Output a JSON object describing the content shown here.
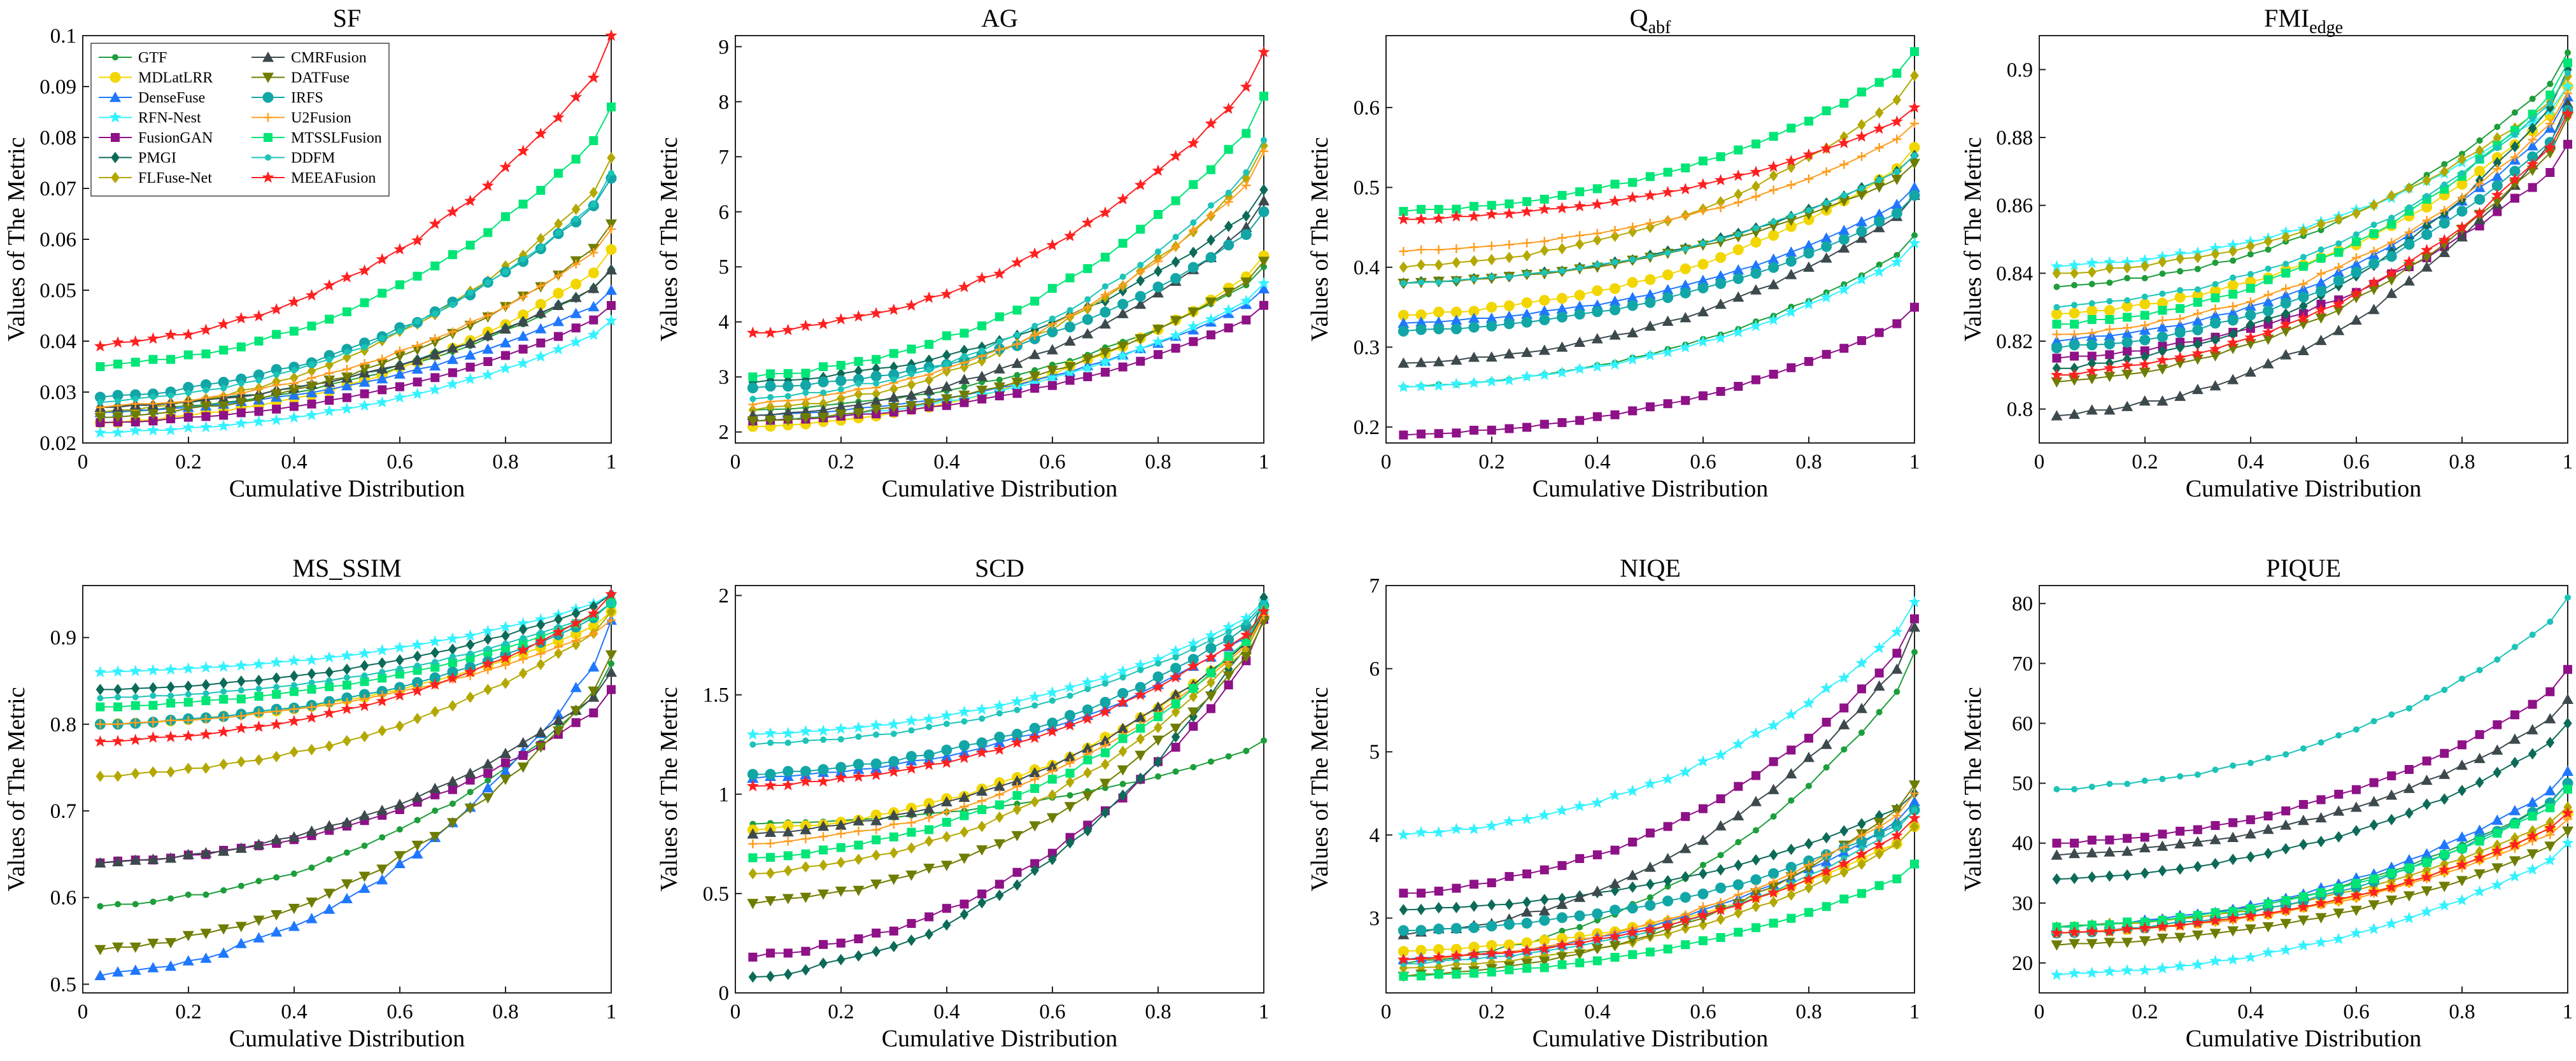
{
  "figure": {
    "x_tick_labels": [
      "0",
      "0.2",
      "0.4",
      "0.6",
      "0.8",
      "1"
    ]
  },
  "methods": [
    {
      "name": "GTF",
      "color": "#1d9e3b",
      "marker": "dot"
    },
    {
      "name": "MDLatLRR",
      "color": "#f2d600",
      "marker": "circle"
    },
    {
      "name": "DenseFuse",
      "color": "#1f77ff",
      "marker": "triangle"
    },
    {
      "name": "RFN-Nest",
      "color": "#33f2ff",
      "marker": "star"
    },
    {
      "name": "FusionGAN",
      "color": "#8e1187",
      "marker": "square"
    },
    {
      "name": "PMGI",
      "color": "#0c6b58",
      "marker": "diamond"
    },
    {
      "name": "FLFuse-Net",
      "color": "#b3a800",
      "marker": "diamond"
    },
    {
      "name": "CMRFusion",
      "color": "#3d4a4d",
      "marker": "triangle"
    },
    {
      "name": "DATFuse",
      "color": "#6e7d00",
      "marker": "triangle-down"
    },
    {
      "name": "IRFS",
      "color": "#12a6a6",
      "marker": "circle"
    },
    {
      "name": "U2Fusion",
      "color": "#ff9d1e",
      "marker": "plus"
    },
    {
      "name": "MTSSLFusion",
      "color": "#00e676",
      "marker": "square"
    },
    {
      "name": "DDFM",
      "color": "#1cc4b8",
      "marker": "dot"
    },
    {
      "name": "MEEAFusion",
      "color": "#ff2020",
      "marker": "star"
    }
  ],
  "chart_data": [
    {
      "type": "line",
      "title": "SF",
      "title_sub": "",
      "xlabel": "Cumulative Distribution",
      "ylabel": "Values of The Metric",
      "xlim": [
        0,
        1
      ],
      "ylim": [
        0.02,
        0.1
      ],
      "yticks": [
        "0.02",
        "0.03",
        "0.04",
        "0.05",
        "0.06",
        "0.07",
        "0.08",
        "0.09",
        "0.1"
      ],
      "series": [
        {
          "name": "GTF",
          "start": 0.026,
          "end": 0.054
        },
        {
          "name": "MDLatLRR",
          "start": 0.024,
          "end": 0.058
        },
        {
          "name": "DenseFuse",
          "start": 0.026,
          "end": 0.05
        },
        {
          "name": "RFN-Nest",
          "start": 0.022,
          "end": 0.044
        },
        {
          "name": "FusionGAN",
          "start": 0.024,
          "end": 0.047
        },
        {
          "name": "PMGI",
          "start": 0.027,
          "end": 0.054
        },
        {
          "name": "FLFuse-Net",
          "start": 0.026,
          "end": 0.076
        },
        {
          "name": "CMRFusion",
          "start": 0.027,
          "end": 0.054
        },
        {
          "name": "DATFuse",
          "start": 0.025,
          "end": 0.063
        },
        {
          "name": "IRFS",
          "start": 0.029,
          "end": 0.072
        },
        {
          "name": "U2Fusion",
          "start": 0.027,
          "end": 0.062
        },
        {
          "name": "MTSSLFusion",
          "start": 0.035,
          "end": 0.086
        },
        {
          "name": "DDFM",
          "start": 0.028,
          "end": 0.073
        },
        {
          "name": "MEEAFusion",
          "start": 0.039,
          "end": 0.1
        }
      ]
    },
    {
      "type": "line",
      "title": "AG",
      "title_sub": "",
      "xlabel": "Cumulative Distribution",
      "ylabel": "Values of The Metric",
      "xlim": [
        0,
        1
      ],
      "ylim": [
        1.8,
        9.2
      ],
      "yticks": [
        "2",
        "3",
        "4",
        "5",
        "6",
        "7",
        "8",
        "9"
      ],
      "series": [
        {
          "name": "GTF",
          "start": 2.4,
          "end": 5.0
        },
        {
          "name": "MDLatLRR",
          "start": 2.1,
          "end": 5.2
        },
        {
          "name": "DenseFuse",
          "start": 2.3,
          "end": 4.6
        },
        {
          "name": "RFN-Nest",
          "start": 2.2,
          "end": 4.7
        },
        {
          "name": "FusionGAN",
          "start": 2.2,
          "end": 4.3
        },
        {
          "name": "PMGI",
          "start": 2.9,
          "end": 6.4
        },
        {
          "name": "FLFuse-Net",
          "start": 2.4,
          "end": 7.2
        },
        {
          "name": "CMRFusion",
          "start": 2.3,
          "end": 6.2
        },
        {
          "name": "DATFuse",
          "start": 2.2,
          "end": 5.1
        },
        {
          "name": "IRFS",
          "start": 2.8,
          "end": 6.0
        },
        {
          "name": "U2Fusion",
          "start": 2.5,
          "end": 7.1
        },
        {
          "name": "MTSSLFusion",
          "start": 3.0,
          "end": 8.1
        },
        {
          "name": "DDFM",
          "start": 2.6,
          "end": 7.3
        },
        {
          "name": "MEEAFusion",
          "start": 3.8,
          "end": 8.9
        }
      ]
    },
    {
      "type": "line",
      "title": "Q",
      "title_sub": "abf",
      "xlabel": "Cumulative Distribution",
      "ylabel": "Values of The Metric",
      "xlim": [
        0,
        1
      ],
      "ylim": [
        0.18,
        0.69
      ],
      "yticks": [
        "0.2",
        "0.3",
        "0.4",
        "0.5",
        "0.6"
      ],
      "series": [
        {
          "name": "GTF",
          "start": 0.25,
          "end": 0.44
        },
        {
          "name": "MDLatLRR",
          "start": 0.34,
          "end": 0.55
        },
        {
          "name": "DenseFuse",
          "start": 0.33,
          "end": 0.5
        },
        {
          "name": "RFN-Nest",
          "start": 0.25,
          "end": 0.43
        },
        {
          "name": "FusionGAN",
          "start": 0.19,
          "end": 0.35
        },
        {
          "name": "PMGI",
          "start": 0.38,
          "end": 0.54
        },
        {
          "name": "FLFuse-Net",
          "start": 0.4,
          "end": 0.64
        },
        {
          "name": "CMRFusion",
          "start": 0.28,
          "end": 0.49
        },
        {
          "name": "DATFuse",
          "start": 0.38,
          "end": 0.53
        },
        {
          "name": "IRFS",
          "start": 0.32,
          "end": 0.49
        },
        {
          "name": "U2Fusion",
          "start": 0.42,
          "end": 0.58
        },
        {
          "name": "MTSSLFusion",
          "start": 0.47,
          "end": 0.67
        },
        {
          "name": "DDFM",
          "start": 0.38,
          "end": 0.54
        },
        {
          "name": "MEEAFusion",
          "start": 0.46,
          "end": 0.6
        }
      ]
    },
    {
      "type": "line",
      "title": "FMI",
      "title_sub": "edge",
      "xlabel": "Cumulative Distribution",
      "ylabel": "Values of The Metric",
      "xlim": [
        0,
        1
      ],
      "ylim": [
        0.79,
        0.91
      ],
      "yticks": [
        "0.8",
        "0.82",
        "0.84",
        "0.86",
        "0.88",
        "0.9"
      ],
      "series": [
        {
          "name": "GTF",
          "start": 0.836,
          "end": 0.905
        },
        {
          "name": "MDLatLRR",
          "start": 0.828,
          "end": 0.895
        },
        {
          "name": "DenseFuse",
          "start": 0.82,
          "end": 0.892
        },
        {
          "name": "RFN-Nest",
          "start": 0.842,
          "end": 0.895
        },
        {
          "name": "FusionGAN",
          "start": 0.815,
          "end": 0.878
        },
        {
          "name": "PMGI",
          "start": 0.812,
          "end": 0.9
        },
        {
          "name": "FLFuse-Net",
          "start": 0.84,
          "end": 0.898
        },
        {
          "name": "CMRFusion",
          "start": 0.798,
          "end": 0.89
        },
        {
          "name": "DATFuse",
          "start": 0.808,
          "end": 0.886
        },
        {
          "name": "IRFS",
          "start": 0.818,
          "end": 0.888
        },
        {
          "name": "U2Fusion",
          "start": 0.822,
          "end": 0.893
        },
        {
          "name": "MTSSLFusion",
          "start": 0.825,
          "end": 0.902
        },
        {
          "name": "DDFM",
          "start": 0.83,
          "end": 0.899
        },
        {
          "name": "MEEAFusion",
          "start": 0.81,
          "end": 0.887
        }
      ]
    },
    {
      "type": "line",
      "title": "MS_SSIM",
      "title_sub": "",
      "xlabel": "Cumulative Distribution",
      "ylabel": "Values of The Metric",
      "xlim": [
        0,
        1
      ],
      "ylim": [
        0.49,
        0.96
      ],
      "yticks": [
        "0.5",
        "0.6",
        "0.7",
        "0.8",
        "0.9"
      ],
      "series": [
        {
          "name": "GTF",
          "start": 0.59,
          "end": 0.87
        },
        {
          "name": "MDLatLRR",
          "start": 0.8,
          "end": 0.93
        },
        {
          "name": "DenseFuse",
          "start": 0.51,
          "end": 0.92
        },
        {
          "name": "RFN-Nest",
          "start": 0.86,
          "end": 0.95
        },
        {
          "name": "FusionGAN",
          "start": 0.64,
          "end": 0.84
        },
        {
          "name": "PMGI",
          "start": 0.84,
          "end": 0.95
        },
        {
          "name": "FLFuse-Net",
          "start": 0.74,
          "end": 0.93
        },
        {
          "name": "CMRFusion",
          "start": 0.64,
          "end": 0.86
        },
        {
          "name": "DATFuse",
          "start": 0.54,
          "end": 0.88
        },
        {
          "name": "IRFS",
          "start": 0.8,
          "end": 0.94
        },
        {
          "name": "U2Fusion",
          "start": 0.8,
          "end": 0.92
        },
        {
          "name": "MTSSLFusion",
          "start": 0.82,
          "end": 0.94
        },
        {
          "name": "DDFM",
          "start": 0.83,
          "end": 0.94
        },
        {
          "name": "MEEAFusion",
          "start": 0.78,
          "end": 0.95
        }
      ]
    },
    {
      "type": "line",
      "title": "SCD",
      "title_sub": "",
      "xlabel": "Cumulative Distribution",
      "ylabel": "Values of The Metric",
      "xlim": [
        0,
        1
      ],
      "ylim": [
        0,
        2.05
      ],
      "yticks": [
        "0",
        "0.5",
        "1",
        "1.5",
        "2"
      ],
      "series": [
        {
          "name": "GTF",
          "start": 0.85,
          "end": 1.27
        },
        {
          "name": "MDLatLRR",
          "start": 0.82,
          "end": 1.89
        },
        {
          "name": "DenseFuse",
          "start": 1.08,
          "end": 1.9
        },
        {
          "name": "RFN-Nest",
          "start": 1.3,
          "end": 1.97
        },
        {
          "name": "FusionGAN",
          "start": 0.18,
          "end": 1.88
        },
        {
          "name": "PMGI",
          "start": 0.08,
          "end": 1.99
        },
        {
          "name": "FLFuse-Net",
          "start": 0.6,
          "end": 1.9
        },
        {
          "name": "CMRFusion",
          "start": 0.8,
          "end": 1.91
        },
        {
          "name": "DATFuse",
          "start": 0.45,
          "end": 1.87
        },
        {
          "name": "IRFS",
          "start": 1.1,
          "end": 1.95
        },
        {
          "name": "U2Fusion",
          "start": 0.75,
          "end": 1.9
        },
        {
          "name": "MTSSLFusion",
          "start": 0.68,
          "end": 1.93
        },
        {
          "name": "DDFM",
          "start": 1.25,
          "end": 1.96
        },
        {
          "name": "MEEAFusion",
          "start": 1.04,
          "end": 1.92
        }
      ]
    },
    {
      "type": "line",
      "title": "NIQE",
      "title_sub": "",
      "xlabel": "Cumulative Distribution",
      "ylabel": "Values of The Metric",
      "xlim": [
        0,
        1
      ],
      "ylim": [
        2.1,
        7
      ],
      "yticks": [
        "3",
        "4",
        "5",
        "6",
        "7"
      ],
      "series": [
        {
          "name": "GTF",
          "start": 2.45,
          "end": 6.2
        },
        {
          "name": "MDLatLRR",
          "start": 2.6,
          "end": 4.1
        },
        {
          "name": "DenseFuse",
          "start": 2.5,
          "end": 4.4
        },
        {
          "name": "RFN-Nest",
          "start": 4.0,
          "end": 6.8
        },
        {
          "name": "FusionGAN",
          "start": 3.3,
          "end": 6.6
        },
        {
          "name": "PMGI",
          "start": 3.1,
          "end": 4.5
        },
        {
          "name": "FLFuse-Net",
          "start": 2.4,
          "end": 4.1
        },
        {
          "name": "CMRFusion",
          "start": 2.8,
          "end": 6.5
        },
        {
          "name": "DATFuse",
          "start": 2.3,
          "end": 4.6
        },
        {
          "name": "IRFS",
          "start": 2.85,
          "end": 4.3
        },
        {
          "name": "U2Fusion",
          "start": 2.5,
          "end": 4.5
        },
        {
          "name": "MTSSLFusion",
          "start": 2.3,
          "end": 3.65
        },
        {
          "name": "DDFM",
          "start": 2.45,
          "end": 4.3
        },
        {
          "name": "MEEAFusion",
          "start": 2.5,
          "end": 4.2
        }
      ]
    },
    {
      "type": "line",
      "title": "PIQUE",
      "title_sub": "",
      "xlabel": "Cumulative Distribution",
      "ylabel": "Values of The Metric",
      "xlim": [
        0,
        1
      ],
      "ylim": [
        15,
        83
      ],
      "yticks": [
        "20",
        "30",
        "40",
        "50",
        "60",
        "70",
        "80"
      ],
      "series": [
        {
          "name": "GTF",
          "start": 26,
          "end": 50
        },
        {
          "name": "MDLatLRR",
          "start": 25,
          "end": 45
        },
        {
          "name": "DenseFuse",
          "start": 26,
          "end": 52
        },
        {
          "name": "RFN-Nest",
          "start": 18,
          "end": 40
        },
        {
          "name": "FusionGAN",
          "start": 40,
          "end": 69
        },
        {
          "name": "PMGI",
          "start": 34,
          "end": 60
        },
        {
          "name": "FLFuse-Net",
          "start": 26,
          "end": 46
        },
        {
          "name": "CMRFusion",
          "start": 38,
          "end": 64
        },
        {
          "name": "DATFuse",
          "start": 23,
          "end": 42
        },
        {
          "name": "IRFS",
          "start": 25,
          "end": 50
        },
        {
          "name": "U2Fusion",
          "start": 25,
          "end": 44
        },
        {
          "name": "MTSSLFusion",
          "start": 26,
          "end": 49
        },
        {
          "name": "DDFM",
          "start": 49,
          "end": 81
        },
        {
          "name": "MEEAFusion",
          "start": 25,
          "end": 45
        }
      ]
    }
  ]
}
